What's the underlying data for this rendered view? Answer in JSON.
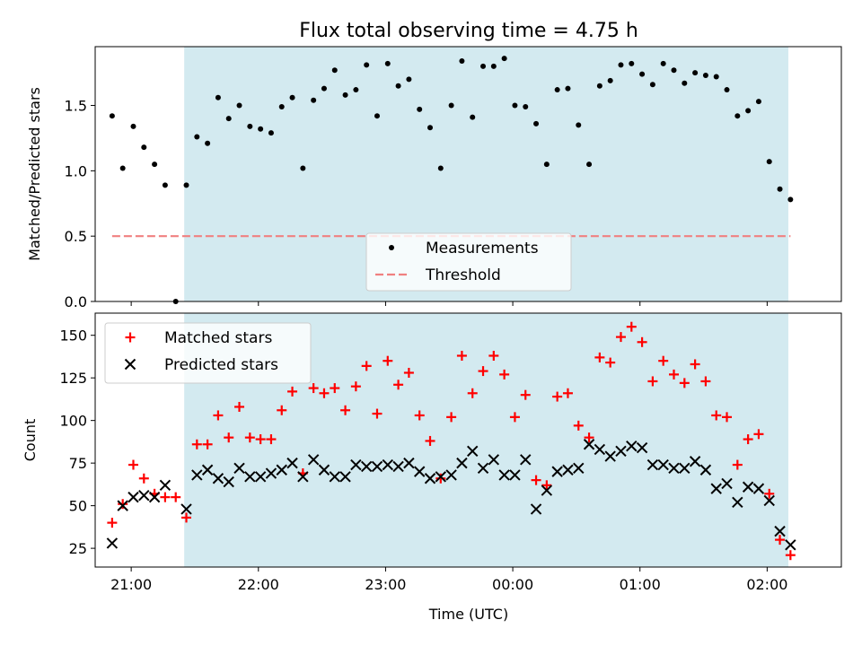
{
  "chart_data": {
    "type": "scatter",
    "title": "Flux total observing time = 4.75 h",
    "xlabel": "Time (UTC)",
    "x_ticks": [
      "21:00",
      "22:00",
      "23:00",
      "00:00",
      "01:00",
      "02:00"
    ],
    "x_range": [
      "20:43",
      "02:35"
    ],
    "shaded_interval": [
      "21:25",
      "02:10"
    ],
    "shade_color": "#d3eaf0",
    "panels": [
      {
        "ylabel": "Matched/Predicted stars",
        "ylim": [
          0,
          1.95
        ],
        "y_ticks": [
          0.0,
          0.5,
          1.0,
          1.5
        ],
        "y_tick_labels": [
          "0.0",
          "0.5",
          "1.0",
          "1.5"
        ],
        "legend_position": "lower-center",
        "series": [
          {
            "name": "Measurements",
            "marker": "dot",
            "color": "#000000",
            "points": [
              [
                "20:51",
                1.42
              ],
              [
                "20:56",
                1.02
              ],
              [
                "21:01",
                1.34
              ],
              [
                "21:06",
                1.18
              ],
              [
                "21:11",
                1.05
              ],
              [
                "21:16",
                0.89
              ],
              [
                "21:21",
                0.0
              ],
              [
                "21:26",
                0.89
              ],
              [
                "21:31",
                1.26
              ],
              [
                "21:36",
                1.21
              ],
              [
                "21:41",
                1.56
              ],
              [
                "21:46",
                1.4
              ],
              [
                "21:51",
                1.5
              ],
              [
                "21:56",
                1.34
              ],
              [
                "22:01",
                1.32
              ],
              [
                "22:06",
                1.29
              ],
              [
                "22:11",
                1.49
              ],
              [
                "22:16",
                1.56
              ],
              [
                "22:21",
                1.02
              ],
              [
                "22:26",
                1.54
              ],
              [
                "22:31",
                1.63
              ],
              [
                "22:36",
                1.77
              ],
              [
                "22:41",
                1.58
              ],
              [
                "22:46",
                1.62
              ],
              [
                "22:51",
                1.81
              ],
              [
                "22:56",
                1.42
              ],
              [
                "23:01",
                1.82
              ],
              [
                "23:06",
                1.65
              ],
              [
                "23:11",
                1.7
              ],
              [
                "23:16",
                1.47
              ],
              [
                "23:21",
                1.33
              ],
              [
                "23:26",
                1.02
              ],
              [
                "23:31",
                1.5
              ],
              [
                "23:36",
                1.84
              ],
              [
                "23:41",
                1.41
              ],
              [
                "23:46",
                1.8
              ],
              [
                "23:51",
                1.8
              ],
              [
                "23:56",
                1.86
              ],
              [
                "00:01",
                1.5
              ],
              [
                "00:06",
                1.49
              ],
              [
                "00:11",
                1.36
              ],
              [
                "00:16",
                1.05
              ],
              [
                "00:21",
                1.62
              ],
              [
                "00:26",
                1.63
              ],
              [
                "00:31",
                1.35
              ],
              [
                "00:36",
                1.05
              ],
              [
                "00:41",
                1.65
              ],
              [
                "00:46",
                1.69
              ],
              [
                "00:51",
                1.81
              ],
              [
                "00:56",
                1.82
              ],
              [
                "01:01",
                1.74
              ],
              [
                "01:06",
                1.66
              ],
              [
                "01:11",
                1.82
              ],
              [
                "01:16",
                1.77
              ],
              [
                "01:21",
                1.67
              ],
              [
                "01:26",
                1.75
              ],
              [
                "01:31",
                1.73
              ],
              [
                "01:36",
                1.72
              ],
              [
                "01:41",
                1.62
              ],
              [
                "01:46",
                1.42
              ],
              [
                "01:51",
                1.46
              ],
              [
                "01:56",
                1.53
              ],
              [
                "02:01",
                1.07
              ],
              [
                "02:06",
                0.86
              ],
              [
                "02:11",
                0.78
              ]
            ]
          },
          {
            "name": "Threshold",
            "marker": "dashed-line",
            "color": "#f08080",
            "points": [
              [
                "20:51",
                0.5
              ],
              [
                "02:11",
                0.5
              ]
            ]
          }
        ]
      },
      {
        "ylabel": "Count",
        "ylim": [
          14,
          163
        ],
        "y_ticks": [
          25,
          50,
          75,
          100,
          125,
          150
        ],
        "y_tick_labels": [
          "25",
          "50",
          "75",
          "100",
          "125",
          "150"
        ],
        "legend_position": "upper-left",
        "series": [
          {
            "name": "Matched stars",
            "marker": "plus",
            "color": "#ff0000",
            "points": [
              [
                "20:51",
                40
              ],
              [
                "20:56",
                51
              ],
              [
                "21:01",
                74
              ],
              [
                "21:06",
                66
              ],
              [
                "21:11",
                57
              ],
              [
                "21:16",
                55
              ],
              [
                "21:21",
                55
              ],
              [
                "21:26",
                43
              ],
              [
                "21:31",
                86
              ],
              [
                "21:36",
                86
              ],
              [
                "21:41",
                103
              ],
              [
                "21:46",
                90
              ],
              [
                "21:51",
                108
              ],
              [
                "21:56",
                90
              ],
              [
                "22:01",
                89
              ],
              [
                "22:06",
                89
              ],
              [
                "22:11",
                106
              ],
              [
                "22:16",
                117
              ],
              [
                "22:21",
                69
              ],
              [
                "22:26",
                119
              ],
              [
                "22:31",
                116
              ],
              [
                "22:36",
                119
              ],
              [
                "22:41",
                106
              ],
              [
                "22:46",
                120
              ],
              [
                "22:51",
                132
              ],
              [
                "22:56",
                104
              ],
              [
                "23:01",
                135
              ],
              [
                "23:06",
                121
              ],
              [
                "23:11",
                128
              ],
              [
                "23:16",
                103
              ],
              [
                "23:21",
                88
              ],
              [
                "23:26",
                66
              ],
              [
                "23:31",
                102
              ],
              [
                "23:36",
                138
              ],
              [
                "23:41",
                116
              ],
              [
                "23:46",
                129
              ],
              [
                "23:51",
                138
              ],
              [
                "23:56",
                127
              ],
              [
                "00:01",
                102
              ],
              [
                "00:06",
                115
              ],
              [
                "00:11",
                65
              ],
              [
                "00:16",
                62
              ],
              [
                "00:21",
                114
              ],
              [
                "00:26",
                116
              ],
              [
                "00:31",
                97
              ],
              [
                "00:36",
                90
              ],
              [
                "00:41",
                137
              ],
              [
                "00:46",
                134
              ],
              [
                "00:51",
                149
              ],
              [
                "00:56",
                155
              ],
              [
                "01:01",
                146
              ],
              [
                "01:06",
                123
              ],
              [
                "01:11",
                135
              ],
              [
                "01:16",
                127
              ],
              [
                "01:21",
                122
              ],
              [
                "01:26",
                133
              ],
              [
                "01:31",
                123
              ],
              [
                "01:36",
                103
              ],
              [
                "01:41",
                102
              ],
              [
                "01:46",
                74
              ],
              [
                "01:51",
                89
              ],
              [
                "01:56",
                92
              ],
              [
                "02:01",
                57
              ],
              [
                "02:06",
                30
              ],
              [
                "02:11",
                21
              ]
            ]
          },
          {
            "name": "Predicted stars",
            "marker": "x",
            "color": "#000000",
            "points": [
              [
                "20:51",
                28
              ],
              [
                "20:56",
                50
              ],
              [
                "21:01",
                55
              ],
              [
                "21:06",
                56
              ],
              [
                "21:11",
                55
              ],
              [
                "21:16",
                62
              ],
              [
                "21:21",
                null
              ],
              [
                "21:26",
                48
              ],
              [
                "21:31",
                68
              ],
              [
                "21:36",
                71
              ],
              [
                "21:41",
                66
              ],
              [
                "21:46",
                64
              ],
              [
                "21:51",
                72
              ],
              [
                "21:56",
                67
              ],
              [
                "22:01",
                67
              ],
              [
                "22:06",
                69
              ],
              [
                "22:11",
                71
              ],
              [
                "22:16",
                75
              ],
              [
                "22:21",
                67
              ],
              [
                "22:26",
                77
              ],
              [
                "22:31",
                71
              ],
              [
                "22:36",
                67
              ],
              [
                "22:41",
                67
              ],
              [
                "22:46",
                74
              ],
              [
                "22:51",
                73
              ],
              [
                "22:56",
                73
              ],
              [
                "23:01",
                74
              ],
              [
                "23:06",
                73
              ],
              [
                "23:11",
                75
              ],
              [
                "23:16",
                70
              ],
              [
                "23:21",
                66
              ],
              [
                "23:26",
                67
              ],
              [
                "23:31",
                68
              ],
              [
                "23:36",
                75
              ],
              [
                "23:41",
                82
              ],
              [
                "23:46",
                72
              ],
              [
                "23:51",
                77
              ],
              [
                "23:56",
                68
              ],
              [
                "00:01",
                68
              ],
              [
                "00:06",
                77
              ],
              [
                "00:11",
                48
              ],
              [
                "00:16",
                59
              ],
              [
                "00:21",
                70
              ],
              [
                "00:26",
                71
              ],
              [
                "00:31",
                72
              ],
              [
                "00:36",
                86
              ],
              [
                "00:41",
                83
              ],
              [
                "00:46",
                79
              ],
              [
                "00:51",
                82
              ],
              [
                "00:56",
                85
              ],
              [
                "01:01",
                84
              ],
              [
                "01:06",
                74
              ],
              [
                "01:11",
                74
              ],
              [
                "01:16",
                72
              ],
              [
                "01:21",
                72
              ],
              [
                "01:26",
                76
              ],
              [
                "01:31",
                71
              ],
              [
                "01:36",
                60
              ],
              [
                "01:41",
                63
              ],
              [
                "01:46",
                52
              ],
              [
                "01:51",
                61
              ],
              [
                "01:56",
                60
              ],
              [
                "02:01",
                53
              ],
              [
                "02:06",
                35
              ],
              [
                "02:11",
                27
              ]
            ]
          }
        ]
      }
    ]
  }
}
